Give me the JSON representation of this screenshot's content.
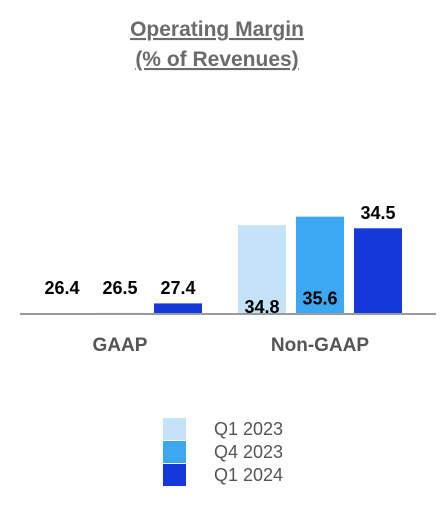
{
  "chart_data": {
    "type": "bar",
    "title": "Operating Margin",
    "subtitle": "(% of Revenues)",
    "categories": [
      "GAAP",
      "Non-GAAP"
    ],
    "series": [
      {
        "name": "Q1 2023",
        "color": "#c5e3f8",
        "values": [
          26.4,
          34.8
        ]
      },
      {
        "name": "Q4 2023",
        "color": "#3da8f2",
        "values": [
          26.5,
          35.6
        ]
      },
      {
        "name": "Q1 2024",
        "color": "#1438d9",
        "values": [
          27.4,
          34.5
        ]
      }
    ],
    "value_labels": [
      [
        "26.4",
        "34.8"
      ],
      [
        "26.5",
        "35.6"
      ],
      [
        "27.4",
        "34.5"
      ]
    ],
    "legend": "bottom-center",
    "grid": false
  }
}
